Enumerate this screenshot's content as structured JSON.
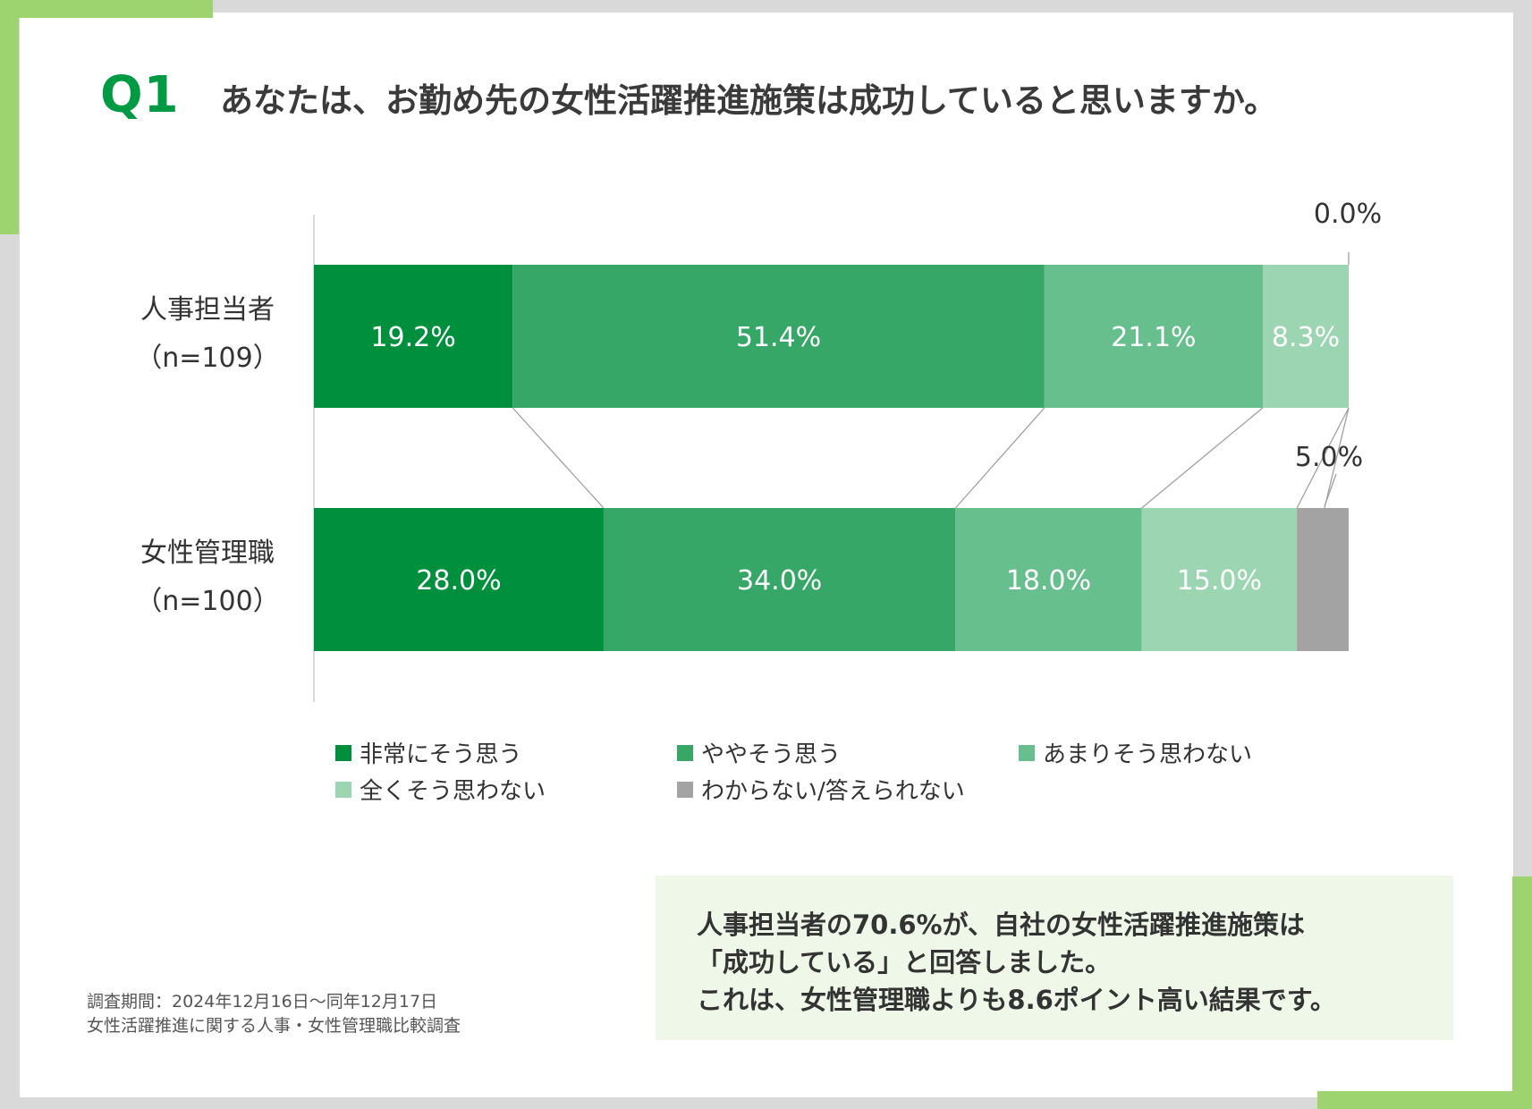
{
  "question": {
    "badge": "Q1",
    "text": "あなたは、お勤め先の女性活躍推進施策は成功していると思いますか。"
  },
  "colors": {
    "accent": "#9ed46f",
    "brand": "#009a44",
    "note_bg": "#eef7e8"
  },
  "chart_data": {
    "type": "bar",
    "orientation": "horizontal",
    "stacked": "percent",
    "categories": [
      {
        "label_line1": "人事担当者",
        "label_line2": "（n=109）"
      },
      {
        "label_line1": "女性管理職",
        "label_line2": "（n=100）"
      }
    ],
    "series": [
      {
        "name": "非常にそう思う",
        "color": "#008f3d",
        "values": [
          19.2,
          28.0
        ],
        "labels": [
          "19.2%",
          "28.0%"
        ]
      },
      {
        "name": "ややそう思う",
        "color": "#37a767",
        "values": [
          51.4,
          34.0
        ],
        "labels": [
          "51.4%",
          "34.0%"
        ]
      },
      {
        "name": "あまりそう思わない",
        "color": "#68bf8e",
        "values": [
          21.1,
          18.0
        ],
        "labels": [
          "21.1%",
          "18.0%"
        ]
      },
      {
        "name": "全くそう思わない",
        "color": "#9bd5b2",
        "values": [
          8.3,
          15.0
        ],
        "labels": [
          "8.3%",
          "15.0%"
        ]
      },
      {
        "name": "わからない/答えられない",
        "color": "#a3a3a3",
        "values": [
          0.0,
          5.0
        ],
        "labels": [
          "0.0%",
          "5.0%"
        ]
      }
    ],
    "xlim": [
      0,
      100
    ],
    "legend_position": "bottom"
  },
  "note": {
    "line1": "人事担当者の70.6%が、自社の女性活躍推進施策は",
    "line2": "「成功している」と回答しました。",
    "line3": "これは、女性管理職よりも8.6ポイント高い結果です。"
  },
  "source": {
    "line1": "調査期間：2024年12月16日～同年12月17日",
    "line2": "女性活躍推進に関する人事・女性管理職比較調査"
  }
}
